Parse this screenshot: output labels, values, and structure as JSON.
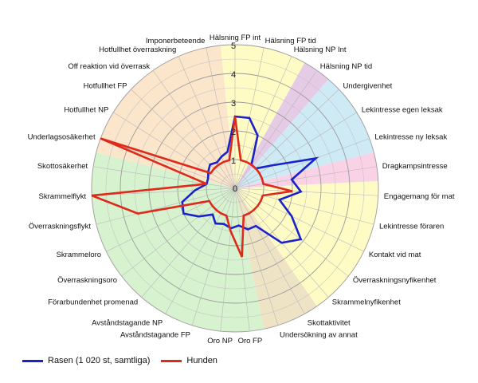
{
  "chart_data": {
    "type": "radar",
    "rmax": 5,
    "ticks": [
      "0",
      "1",
      "2",
      "3",
      "4",
      "5"
    ],
    "categories": [
      "Hälsning FP int",
      "Hälsning FP tid",
      "Hälsning NP Int",
      "Hälsning NP tid",
      "Undergivenhet",
      "Lekintresse egen leksak",
      "Lekintresse ny leksak",
      "Dragkampsintresse",
      "Engagemang för mat",
      "Lekintresse föraren",
      "Kontakt vid mat",
      "Överraskningsnyfikenhet",
      "Skrammelnyfikenhet",
      "Skottaktivitet",
      "Undersökning av annat",
      "Oro FP",
      "Oro NP",
      "Avståndstagande FP",
      "Avståndstagande NP",
      "Förarbundenhet promenad",
      "Överraskningsoro",
      "Skrammeloro",
      "Överraskningsflykt",
      "Skrammelflykt",
      "Skottosäkerhet",
      "Underlagsosäkerhet",
      "Hotfullhet NP",
      "Hotfullhet FP",
      "Off reaktion vid överrask",
      "Hotfullhet överraskning",
      "Imponerbeteende"
    ],
    "sectors": [
      {
        "from": 0,
        "to": 3,
        "color": "#fffbc4"
      },
      {
        "from": 3,
        "to": 4,
        "color": "#e6cbe6"
      },
      {
        "from": 4,
        "to": 7,
        "color": "#cdeaf5"
      },
      {
        "from": 7,
        "to": 8,
        "color": "#f9d2e6"
      },
      {
        "from": 8,
        "to": 13,
        "color": "#fffbc4"
      },
      {
        "from": 13,
        "to": 15,
        "color": "#efe3c6"
      },
      {
        "from": 15,
        "to": 25,
        "color": "#d7f2cf"
      },
      {
        "from": 25,
        "to": 31,
        "color": "#fbe5cb"
      }
    ],
    "series": [
      {
        "name": "Rasen (1 020 st, samtliga)",
        "color": "#1a22cc",
        "values": [
          2.5,
          2.5,
          2.0,
          1.0,
          1.0,
          1.5,
          3.0,
          2.0,
          2.3,
          1.6,
          2.2,
          2.9,
          2.5,
          1.5,
          1.5,
          1.3,
          1.4,
          1.3,
          1.4,
          1.2,
          1.6,
          2.0,
          1.9,
          1.4,
          1.0,
          1.0,
          1.1,
          1.2,
          1.1,
          1.2,
          1.3
        ]
      },
      {
        "name": "Hunden",
        "color": "#dd2a1a",
        "values": [
          2.5,
          1.0,
          1.0,
          1.0,
          1.0,
          1.0,
          1.0,
          1.0,
          2.0,
          1.0,
          1.0,
          1.0,
          1.0,
          1.0,
          1.0,
          2.4,
          1.5,
          1.0,
          1.0,
          1.0,
          1.0,
          1.0,
          3.5,
          5.0,
          1.0,
          5.0,
          1.0,
          1.0,
          1.0,
          1.0,
          1.0
        ]
      }
    ],
    "legend_position": "bottom-left"
  }
}
